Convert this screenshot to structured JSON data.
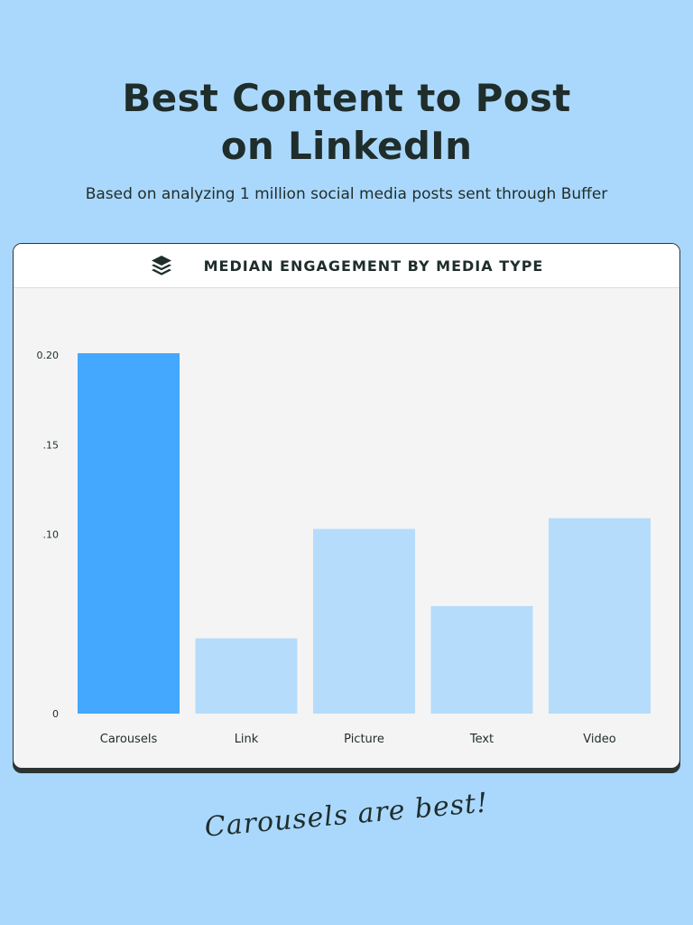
{
  "header": {
    "title_line1": "Best Content to Post",
    "title_line2": "on LinkedIn",
    "subtitle": "Based on analyzing 1 million social media posts sent through Buffer"
  },
  "card": {
    "logo_icon": "buffer-stack-icon",
    "title": "MEDIAN ENGAGEMENT BY MEDIA TYPE"
  },
  "chart_data": {
    "type": "bar",
    "title": "MEDIAN ENGAGEMENT BY MEDIA TYPE",
    "categories": [
      "Carousels",
      "Link",
      "Picture",
      "Text",
      "Video"
    ],
    "values": [
      0.201,
      0.042,
      0.103,
      0.06,
      0.109
    ],
    "ylim": [
      0,
      0.2
    ],
    "yticks": [
      0,
      0.1,
      0.15,
      0.2
    ],
    "ytick_labels": [
      "0",
      ".10",
      ".15",
      "0.20"
    ],
    "xlabel": "",
    "ylabel": "",
    "grid": false,
    "colors": {
      "highlight": "#43a8fe",
      "default": "#b6dcfc"
    },
    "highlight_index": 0
  },
  "footer": {
    "note": "Carousels are best!"
  }
}
